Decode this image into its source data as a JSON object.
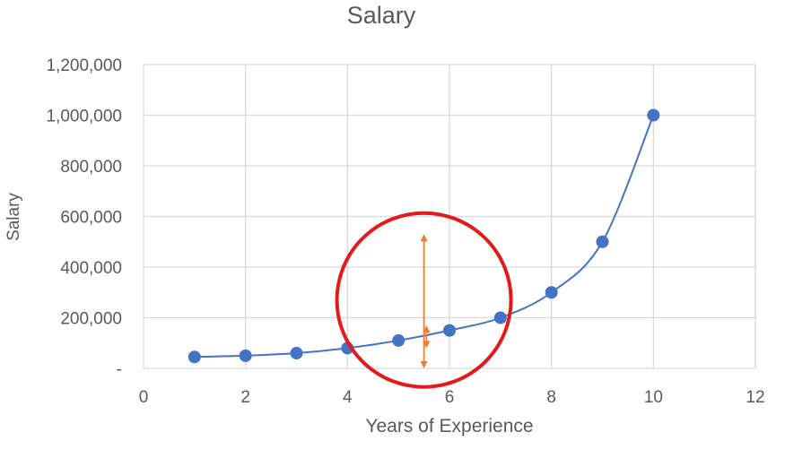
{
  "chart_data": {
    "type": "scatter",
    "title": "Salary",
    "xlabel": "Years of Experience",
    "ylabel": "Salary",
    "xlim": [
      0,
      12
    ],
    "ylim": [
      0,
      1200000
    ],
    "x_ticks": [
      0,
      2,
      4,
      6,
      8,
      10,
      12
    ],
    "x_tick_labels": [
      "0",
      "2",
      "4",
      "6",
      "8",
      "10",
      "12"
    ],
    "y_ticks": [
      0,
      200000,
      400000,
      600000,
      800000,
      1000000,
      1200000
    ],
    "y_tick_labels": [
      "-",
      "200,000",
      "400,000",
      "600,000",
      "800,000",
      "1,000,000",
      "1,200,000"
    ],
    "grid": true,
    "legend": "none",
    "smoothed_line": true,
    "series": [
      {
        "x": [
          1,
          2,
          3,
          4,
          5,
          6,
          7,
          8,
          9,
          10
        ],
        "y": [
          45000,
          50000,
          60000,
          80000,
          110000,
          150000,
          200000,
          300000,
          500000,
          1000000
        ],
        "color": "#4472c4"
      }
    ],
    "annotations": {
      "circle": {
        "cx": 5.5,
        "cy": 270000,
        "color": "#e31a1c"
      },
      "arrows": [
        {
          "x": 5.5,
          "y_from": 0,
          "y_to": 530000,
          "color": "#ed7d31"
        },
        {
          "x": 5.55,
          "y_from": 80000,
          "y_to": 170000,
          "color": "#ed7d31"
        }
      ]
    }
  }
}
